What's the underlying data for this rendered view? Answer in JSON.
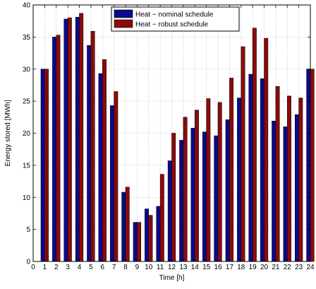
{
  "chart_data": {
    "type": "bar",
    "xlabel": "Time [h]",
    "ylabel": "Energy stored [MWh]",
    "xlim": [
      0,
      24
    ],
    "ylim": [
      0,
      40
    ],
    "xticks": [
      "0",
      "1",
      "2",
      "3",
      "4",
      "5",
      "6",
      "7",
      "8",
      "9",
      "10",
      "11",
      "12",
      "13",
      "14",
      "15",
      "16",
      "17",
      "18",
      "19",
      "20",
      "21",
      "22",
      "23",
      "24"
    ],
    "yticks": [
      "0",
      "5",
      "10",
      "15",
      "20",
      "25",
      "30",
      "35",
      "40"
    ],
    "grid": true,
    "legend_position": "top-right",
    "x": [
      1,
      2,
      3,
      4,
      5,
      6,
      7,
      8,
      9,
      10,
      11,
      12,
      13,
      14,
      15,
      16,
      17,
      18,
      19,
      20,
      21,
      22,
      23,
      24
    ],
    "series": [
      {
        "name": "Heat − nominal schedule",
        "color": "#0a0a8c",
        "values": [
          30.0,
          35.0,
          37.8,
          38.1,
          33.7,
          29.3,
          24.3,
          10.8,
          6.1,
          8.2,
          8.6,
          15.7,
          18.9,
          20.8,
          20.2,
          19.6,
          22.1,
          25.5,
          29.2,
          28.5,
          21.9,
          21.0,
          22.9,
          30.0
        ]
      },
      {
        "name": "Heat − robust schedule",
        "color": "#8c0a0a",
        "values": [
          30.0,
          35.3,
          38.0,
          38.7,
          35.9,
          31.5,
          26.5,
          11.6,
          6.1,
          7.2,
          13.6,
          20.0,
          22.5,
          23.6,
          25.4,
          24.8,
          28.6,
          33.5,
          36.4,
          34.8,
          27.3,
          25.8,
          25.5,
          30.0
        ]
      }
    ]
  }
}
